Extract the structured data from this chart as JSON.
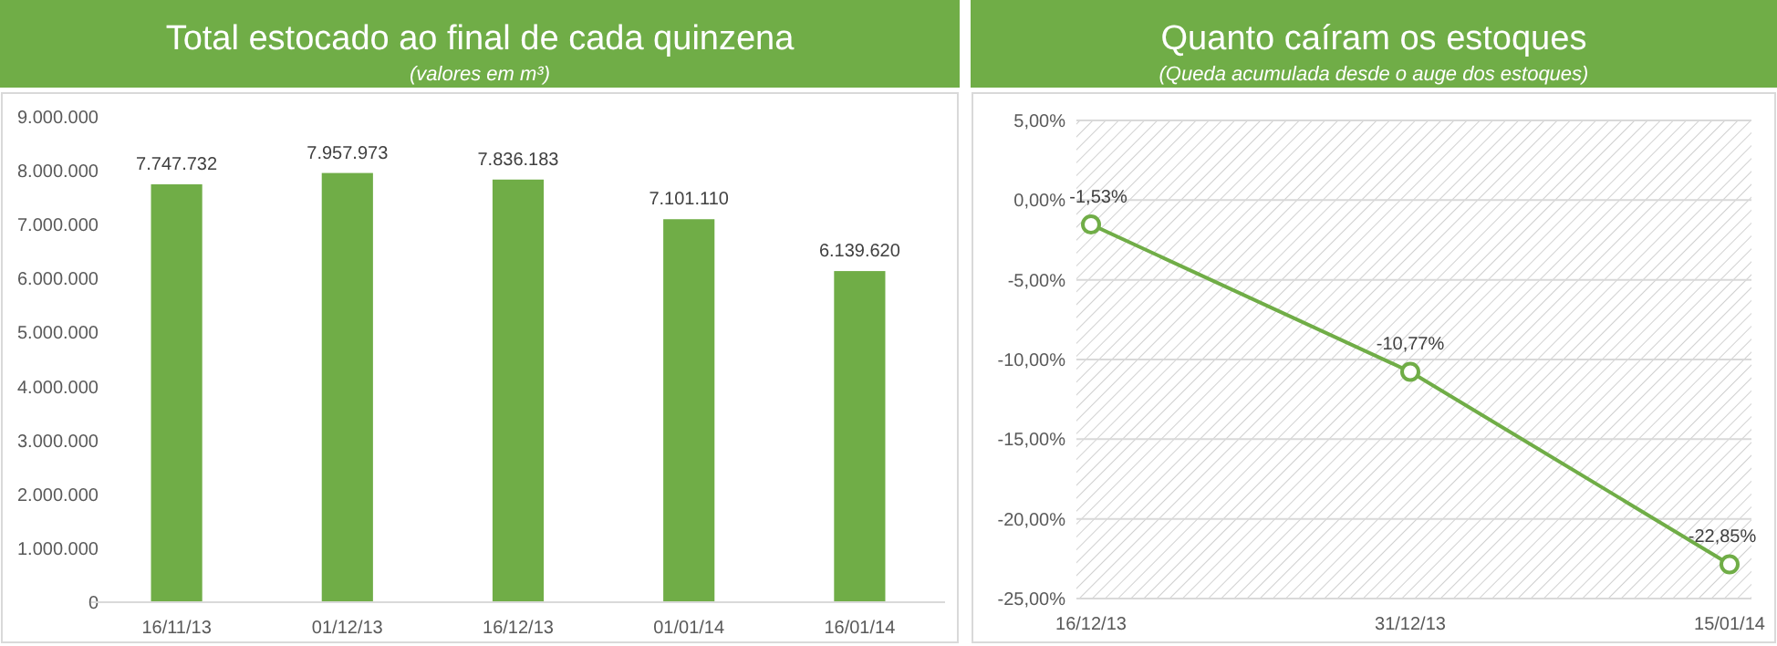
{
  "chart_data": [
    {
      "type": "bar",
      "title": "Total estocado ao final de cada quinzena",
      "subtitle": "(valores em m³)",
      "categories": [
        "16/11/13",
        "01/12/13",
        "16/12/13",
        "01/01/14",
        "16/01/14"
      ],
      "values": [
        7747732,
        7957973,
        7836183,
        7101110,
        6139620
      ],
      "color": "#70ad47",
      "value_labels": [
        "7.747.732",
        "7.957.973",
        "7.836.183",
        "7.101.110",
        "6.139.620"
      ],
      "ylim": [
        0,
        9000000
      ],
      "yticks": [
        {
          "value": 0,
          "label": "0"
        },
        {
          "value": 1000000,
          "label": "1.000.000"
        },
        {
          "value": 2000000,
          "label": "2.000.000"
        },
        {
          "value": 3000000,
          "label": "3.000.000"
        },
        {
          "value": 4000000,
          "label": "4.000.000"
        },
        {
          "value": 5000000,
          "label": "5.000.000"
        },
        {
          "value": 6000000,
          "label": "6.000.000"
        },
        {
          "value": 7000000,
          "label": "7.000.000"
        },
        {
          "value": 8000000,
          "label": "8.000.000"
        },
        {
          "value": 9000000,
          "label": "9.000.000"
        }
      ]
    },
    {
      "type": "line",
      "title": "Quanto caíram os estoques",
      "subtitle": "(Queda acumulada desde o auge dos estoques)",
      "categories": [
        "16/12/13",
        "31/12/13",
        "15/01/14"
      ],
      "values": [
        -1.53,
        -10.77,
        -22.85
      ],
      "color": "#70ad47",
      "value_labels": [
        "-1,53%",
        "-10,77%",
        "-22,85%"
      ],
      "marker": "circle",
      "ylim": [
        -25,
        5
      ],
      "grid": "y",
      "yticks": [
        {
          "value": -25,
          "label": "-25,00%"
        },
        {
          "value": -20,
          "label": "-20,00%"
        },
        {
          "value": -15,
          "label": "-15,00%"
        },
        {
          "value": -10,
          "label": "-10,00%"
        },
        {
          "value": -5,
          "label": "-5,00%"
        },
        {
          "value": 0,
          "label": "0,00%"
        },
        {
          "value": 5,
          "label": "5,00%"
        }
      ]
    }
  ]
}
